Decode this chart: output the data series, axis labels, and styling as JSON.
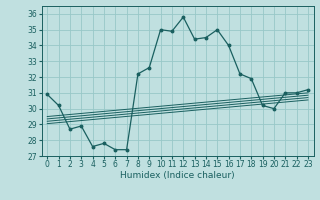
{
  "xlabel": "Humidex (Indice chaleur)",
  "ylabel": "",
  "background_color": "#c0e0e0",
  "grid_color": "#98c8c8",
  "line_color": "#1a6060",
  "xlim": [
    -0.5,
    23.5
  ],
  "ylim": [
    27,
    36.5
  ],
  "yticks": [
    27,
    28,
    29,
    30,
    31,
    32,
    33,
    34,
    35,
    36
  ],
  "xticks": [
    0,
    1,
    2,
    3,
    4,
    5,
    6,
    7,
    8,
    9,
    10,
    11,
    12,
    13,
    14,
    15,
    16,
    17,
    18,
    19,
    20,
    21,
    22,
    23
  ],
  "main_line_x": [
    0,
    1,
    2,
    3,
    4,
    5,
    6,
    7,
    8,
    9,
    10,
    11,
    12,
    13,
    14,
    15,
    16,
    17,
    18,
    19,
    20,
    21,
    22,
    23
  ],
  "main_line_y": [
    30.9,
    30.2,
    28.7,
    28.9,
    27.6,
    27.8,
    27.4,
    27.4,
    32.2,
    32.6,
    35.0,
    34.9,
    35.8,
    34.4,
    34.5,
    35.0,
    34.0,
    32.2,
    31.9,
    30.2,
    30.0,
    31.0,
    31.0,
    31.2
  ],
  "flat_lines": [
    [
      0,
      23,
      29.05,
      30.55
    ],
    [
      0,
      23,
      29.2,
      30.7
    ],
    [
      0,
      23,
      29.35,
      30.85
    ],
    [
      0,
      23,
      29.5,
      31.0
    ]
  ],
  "xlabel_fontsize": 6.5,
  "tick_fontsize": 5.5
}
